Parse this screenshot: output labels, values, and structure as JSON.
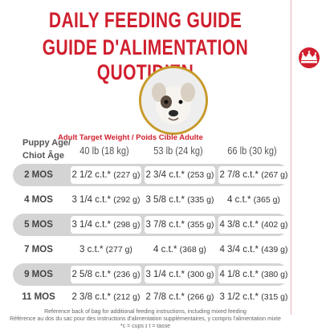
{
  "title_en": "DAILY FEEDING GUIDE",
  "title_fr": "GUIDE D'ALIMENTATION QUOTIDIEN",
  "logo_icon": "royal-canin-crown-icon",
  "brand_color": "#d01f2e",
  "age_header_line1": "Puppy Age/",
  "age_header_line2": "Chiot Âge",
  "weight_header": "Adult Target Weight / Poids Cible Adulte",
  "columns": [
    "40 lb (18 kg)",
    "53 lb (24 kg)",
    "66 lb (30 kg)"
  ],
  "rows": [
    {
      "age": "2 MOS",
      "cells": [
        {
          "main": "2 1/2 c.t.*",
          "g": "(227 g)"
        },
        {
          "main": "2 3/4 c.t.*",
          "g": "(253 g)"
        },
        {
          "main": "2 7/8 c.t.*",
          "g": "(267 g)"
        }
      ]
    },
    {
      "age": "4 MOS",
      "cells": [
        {
          "main": "3 1/4 c.t.*",
          "g": "(292 g)"
        },
        {
          "main": "3 5/8 c.t.*",
          "g": "(335 g)"
        },
        {
          "main": "4 c.t.*",
          "g": "(365 g)"
        }
      ]
    },
    {
      "age": "5 MOS",
      "cells": [
        {
          "main": "3 1/4 c.t.*",
          "g": "(298 g)"
        },
        {
          "main": "3 7/8 c.t.*",
          "g": "(355 g)"
        },
        {
          "main": "4 3/8 c.t.*",
          "g": "(402 g)"
        }
      ]
    },
    {
      "age": "7 MOS",
      "cells": [
        {
          "main": "3 c.t.*",
          "g": "(277 g)"
        },
        {
          "main": "4 c.t.*",
          "g": "(368 g)"
        },
        {
          "main": "4 3/4 c.t.*",
          "g": "(439 g)"
        }
      ]
    },
    {
      "age": "9 MOS",
      "cells": [
        {
          "main": "2 5/8 c.t.*",
          "g": "(236 g)"
        },
        {
          "main": "3 1/4 c.t.*",
          "g": "(300 g)"
        },
        {
          "main": "4 1/8 c.t.*",
          "g": "(380 g)"
        }
      ]
    },
    {
      "age": "11 MOS",
      "cells": [
        {
          "main": "2 3/8 c.t.*",
          "g": "(212 g)"
        },
        {
          "main": "2 7/8 c.t.*",
          "g": "(266 g)"
        },
        {
          "main": "3 1/2 c.t.*",
          "g": "(315 g)"
        }
      ]
    }
  ],
  "footer_line1": "Reference back of bag for additional feeding instructions, including mixed feeding",
  "footer_line2": "Référence au dos du sac pour des instructions d'alimentation supplémentaires, y compris l'alimentation mixte",
  "footer_line3": "*c = cups ɪ t = tasse"
}
